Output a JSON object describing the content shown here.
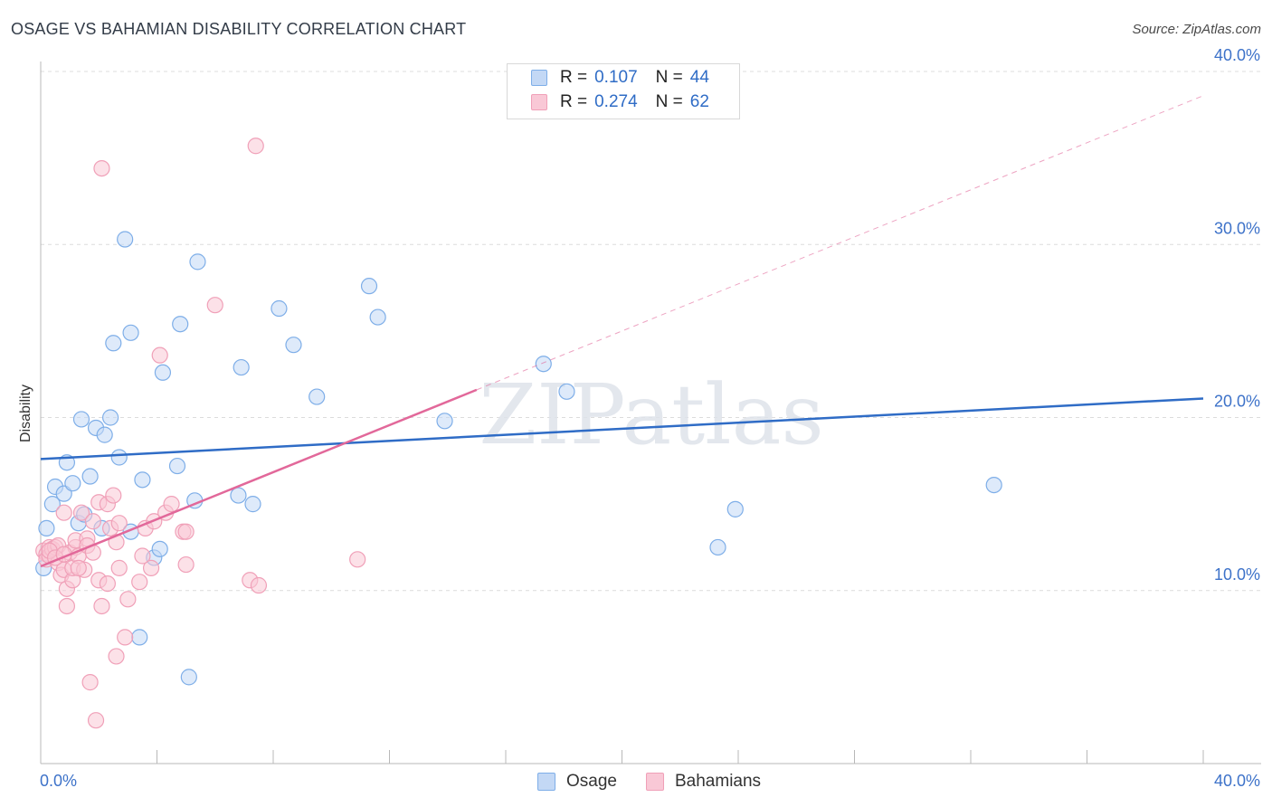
{
  "chart_data": {
    "type": "scatter",
    "title": "OSAGE VS BAHAMIAN DISABILITY CORRELATION CHART",
    "source": "Source: ZipAtlas.com",
    "xlabel": "",
    "ylabel": "Disability",
    "xlim": [
      0,
      40
    ],
    "ylim": [
      0,
      40
    ],
    "x_tick_labels": [
      "0.0%",
      "40.0%"
    ],
    "y_ticks": [
      10,
      20,
      30,
      40
    ],
    "y_tick_labels": [
      "10.0%",
      "20.0%",
      "30.0%",
      "40.0%"
    ],
    "grid": true,
    "watermark": "ZIPatlas",
    "legend": {
      "position": "top-center",
      "entries": [
        {
          "series": "Osage",
          "r_label": "R =",
          "r_value": "0.107",
          "n_label": "N =",
          "n_value": "44"
        },
        {
          "series": "Bahamians",
          "r_label": "R =",
          "r_value": "0.274",
          "n_label": "N =",
          "n_value": "62"
        }
      ]
    },
    "series": [
      {
        "name": "Osage",
        "color": "#7eaee8",
        "fill": "#c3d8f5",
        "line_color": "#2f6cc6",
        "trend": {
          "x": [
            0,
            40
          ],
          "y": [
            17.6,
            21.1
          ],
          "style": "solid"
        },
        "points": [
          [
            0.1,
            11.3
          ],
          [
            0.2,
            13.6
          ],
          [
            0.4,
            15.0
          ],
          [
            0.5,
            16.0
          ],
          [
            0.8,
            15.6
          ],
          [
            0.9,
            17.4
          ],
          [
            1.1,
            16.2
          ],
          [
            1.3,
            13.9
          ],
          [
            1.4,
            19.9
          ],
          [
            1.5,
            14.4
          ],
          [
            1.7,
            16.6
          ],
          [
            1.9,
            19.4
          ],
          [
            2.1,
            13.6
          ],
          [
            2.2,
            19.0
          ],
          [
            2.4,
            20.0
          ],
          [
            2.5,
            24.3
          ],
          [
            2.7,
            17.7
          ],
          [
            2.9,
            30.3
          ],
          [
            3.1,
            13.4
          ],
          [
            3.1,
            24.9
          ],
          [
            3.4,
            7.3
          ],
          [
            3.5,
            16.4
          ],
          [
            3.9,
            11.9
          ],
          [
            4.1,
            12.4
          ],
          [
            4.2,
            22.6
          ],
          [
            4.7,
            17.2
          ],
          [
            4.8,
            25.4
          ],
          [
            5.1,
            5.0
          ],
          [
            5.3,
            15.2
          ],
          [
            5.4,
            29.0
          ],
          [
            6.8,
            15.5
          ],
          [
            6.9,
            22.9
          ],
          [
            7.3,
            15.0
          ],
          [
            8.2,
            26.3
          ],
          [
            8.7,
            24.2
          ],
          [
            9.5,
            21.2
          ],
          [
            11.3,
            27.6
          ],
          [
            11.6,
            25.8
          ],
          [
            13.9,
            19.8
          ],
          [
            17.3,
            23.1
          ],
          [
            18.1,
            21.5
          ],
          [
            23.3,
            12.5
          ],
          [
            23.9,
            14.7
          ],
          [
            32.8,
            16.1
          ]
        ]
      },
      {
        "name": "Bahamians",
        "color": "#f0a0b8",
        "fill": "#f9c8d6",
        "line_color": "#e2689a",
        "trend": {
          "x": [
            0,
            15
          ],
          "y": [
            11.4,
            21.6
          ],
          "style": "solid",
          "dashed_extension_to": [
            40,
            38.6
          ]
        },
        "points": [
          [
            0.1,
            12.3
          ],
          [
            0.2,
            12.1
          ],
          [
            0.2,
            11.8
          ],
          [
            0.3,
            12.5
          ],
          [
            0.3,
            12.0
          ],
          [
            0.4,
            12.4
          ],
          [
            0.5,
            12.5
          ],
          [
            0.6,
            11.6
          ],
          [
            0.6,
            12.6
          ],
          [
            0.7,
            10.9
          ],
          [
            0.8,
            11.2
          ],
          [
            0.8,
            14.5
          ],
          [
            0.9,
            9.1
          ],
          [
            0.9,
            10.1
          ],
          [
            1.0,
            12.2
          ],
          [
            1.1,
            10.6
          ],
          [
            1.1,
            11.3
          ],
          [
            1.2,
            12.5
          ],
          [
            1.2,
            12.9
          ],
          [
            1.3,
            12.0
          ],
          [
            1.4,
            14.5
          ],
          [
            1.5,
            11.2
          ],
          [
            1.6,
            13.0
          ],
          [
            1.6,
            12.6
          ],
          [
            1.7,
            4.7
          ],
          [
            1.8,
            12.2
          ],
          [
            1.8,
            14.0
          ],
          [
            1.9,
            2.5
          ],
          [
            2.0,
            10.6
          ],
          [
            2.0,
            15.1
          ],
          [
            2.1,
            34.4
          ],
          [
            2.1,
            9.1
          ],
          [
            2.3,
            15.0
          ],
          [
            2.3,
            10.4
          ],
          [
            2.4,
            13.6
          ],
          [
            2.5,
            15.5
          ],
          [
            2.6,
            6.2
          ],
          [
            2.7,
            13.9
          ],
          [
            2.7,
            11.3
          ],
          [
            2.9,
            7.3
          ],
          [
            3.0,
            9.5
          ],
          [
            3.4,
            10.5
          ],
          [
            3.6,
            13.6
          ],
          [
            3.8,
            11.3
          ],
          [
            3.9,
            14.0
          ],
          [
            4.1,
            23.6
          ],
          [
            4.3,
            14.5
          ],
          [
            4.5,
            15.0
          ],
          [
            4.9,
            13.4
          ],
          [
            5.0,
            11.5
          ],
          [
            5.0,
            13.4
          ],
          [
            6.0,
            26.5
          ],
          [
            7.2,
            10.6
          ],
          [
            7.5,
            10.3
          ],
          [
            7.4,
            35.7
          ],
          [
            10.9,
            11.8
          ],
          [
            0.3,
            12.3
          ],
          [
            0.5,
            11.9
          ],
          [
            0.8,
            12.1
          ],
          [
            1.3,
            11.3
          ],
          [
            2.6,
            12.8
          ],
          [
            3.5,
            12.0
          ]
        ]
      }
    ]
  }
}
